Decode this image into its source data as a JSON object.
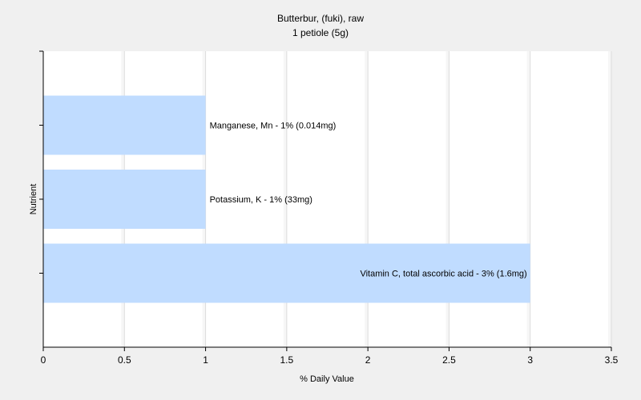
{
  "chart_data": {
    "type": "bar",
    "orientation": "horizontal",
    "title": "Butterbur, (fuki), raw",
    "subtitle": "1 petiole (5g)",
    "xlabel": "% Daily Value",
    "ylabel": "Nutrient",
    "xlim": [
      0,
      3.5
    ],
    "xticks": [
      "0",
      "0.5",
      "1",
      "1.5",
      "2",
      "2.5",
      "3",
      "3.5"
    ],
    "grid": true,
    "categories": [
      "Manganese, Mn",
      "Potassium, K",
      "Vitamin C, total ascorbic acid"
    ],
    "values": [
      1,
      1,
      3
    ],
    "labels": [
      "Manganese, Mn - 1% (0.014mg)",
      "Potassium, K - 1% (33mg)",
      "Vitamin C, total ascorbic acid - 3% (1.6mg)"
    ],
    "colors": {
      "bar": "#c0dcff",
      "grid": "#dcdcdc",
      "plot_background": "#ffffff",
      "background": "#f0f0f0",
      "axis": "#000000"
    }
  }
}
